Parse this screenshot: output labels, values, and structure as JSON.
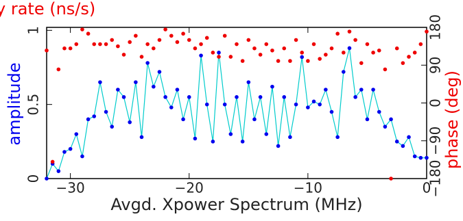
{
  "chart_data": {
    "type": "scatter-line",
    "title": "y rate (ns/s)",
    "xlabel": "Avgd. Xpower Spectrum (MHz)",
    "ylabel": "amplitude",
    "y2label": "phase (deg)",
    "xlim": [
      -32,
      0
    ],
    "ylim": [
      0,
      1.02
    ],
    "y2lim": [
      -180,
      180
    ],
    "xticks": [
      {
        "value": -30,
        "label": "−30"
      },
      {
        "value": -20,
        "label": "−20"
      },
      {
        "value": -10,
        "label": "−10"
      },
      0
    ],
    "yticks": [
      0,
      0.5,
      1
    ],
    "y2ticks": [
      {
        "value": -180,
        "label": "−180"
      },
      {
        "value": -90,
        "label": "−90"
      },
      0,
      90,
      180
    ],
    "x": [
      -32,
      -31.5,
      -31,
      -30.5,
      -30,
      -29.5,
      -29,
      -28.5,
      -28,
      -27.5,
      -27,
      -26.5,
      -26,
      -25.5,
      -25,
      -24.5,
      -24,
      -23.5,
      -23,
      -22.5,
      -22,
      -21.5,
      -21,
      -20.5,
      -20,
      -19.5,
      -19,
      -18.5,
      -18,
      -17.5,
      -17,
      -16.5,
      -16,
      -15.5,
      -15,
      -14.5,
      -14,
      -13.5,
      -13,
      -12.5,
      -12,
      -11.5,
      -11,
      -10.5,
      -10,
      -9.5,
      -9,
      -8.5,
      -8,
      -7.5,
      -7,
      -6.5,
      -6,
      -5.5,
      -5,
      -4.5,
      -4,
      -3.5,
      -3,
      -2.5,
      -2,
      -1.5,
      -1,
      -0.5,
      0
    ],
    "series": [
      {
        "name": "amplitude",
        "color": "#0000ee",
        "line_color": "#00cccc",
        "values": [
          0.0,
          0.1,
          0.05,
          0.18,
          0.2,
          0.3,
          0.15,
          0.4,
          0.42,
          0.65,
          0.45,
          0.35,
          0.6,
          0.55,
          0.38,
          0.65,
          0.28,
          0.78,
          0.62,
          0.72,
          0.55,
          0.48,
          0.6,
          0.4,
          0.55,
          0.27,
          0.83,
          0.5,
          0.25,
          0.85,
          0.5,
          0.3,
          0.55,
          0.25,
          0.65,
          0.4,
          0.55,
          0.3,
          0.62,
          0.22,
          0.55,
          0.28,
          0.5,
          0.82,
          0.48,
          0.52,
          0.5,
          0.6,
          0.45,
          0.28,
          0.72,
          0.88,
          0.55,
          0.6,
          0.4,
          0.6,
          0.45,
          0.35,
          0.4,
          0.25,
          0.22,
          0.28,
          0.15,
          0.14,
          0.14
        ]
      },
      {
        "name": "phase",
        "color": "#ee0000",
        "axis": "y2",
        "values": [
          125,
          -140,
          80,
          130,
          130,
          140,
          175,
          165,
          140,
          140,
          140,
          150,
          135,
          115,
          145,
          160,
          110,
          140,
          130,
          150,
          175,
          160,
          145,
          165,
          150,
          130,
          140,
          155,
          120,
          110,
          160,
          110,
          140,
          100,
          150,
          130,
          115,
          140,
          125,
          100,
          130,
          100,
          150,
          120,
          100,
          140,
          105,
          115,
          130,
          165,
          120,
          170,
          150,
          95,
          140,
          120,
          125,
          80,
          -180,
          130,
          95,
          110,
          120,
          140,
          170
        ]
      }
    ]
  }
}
